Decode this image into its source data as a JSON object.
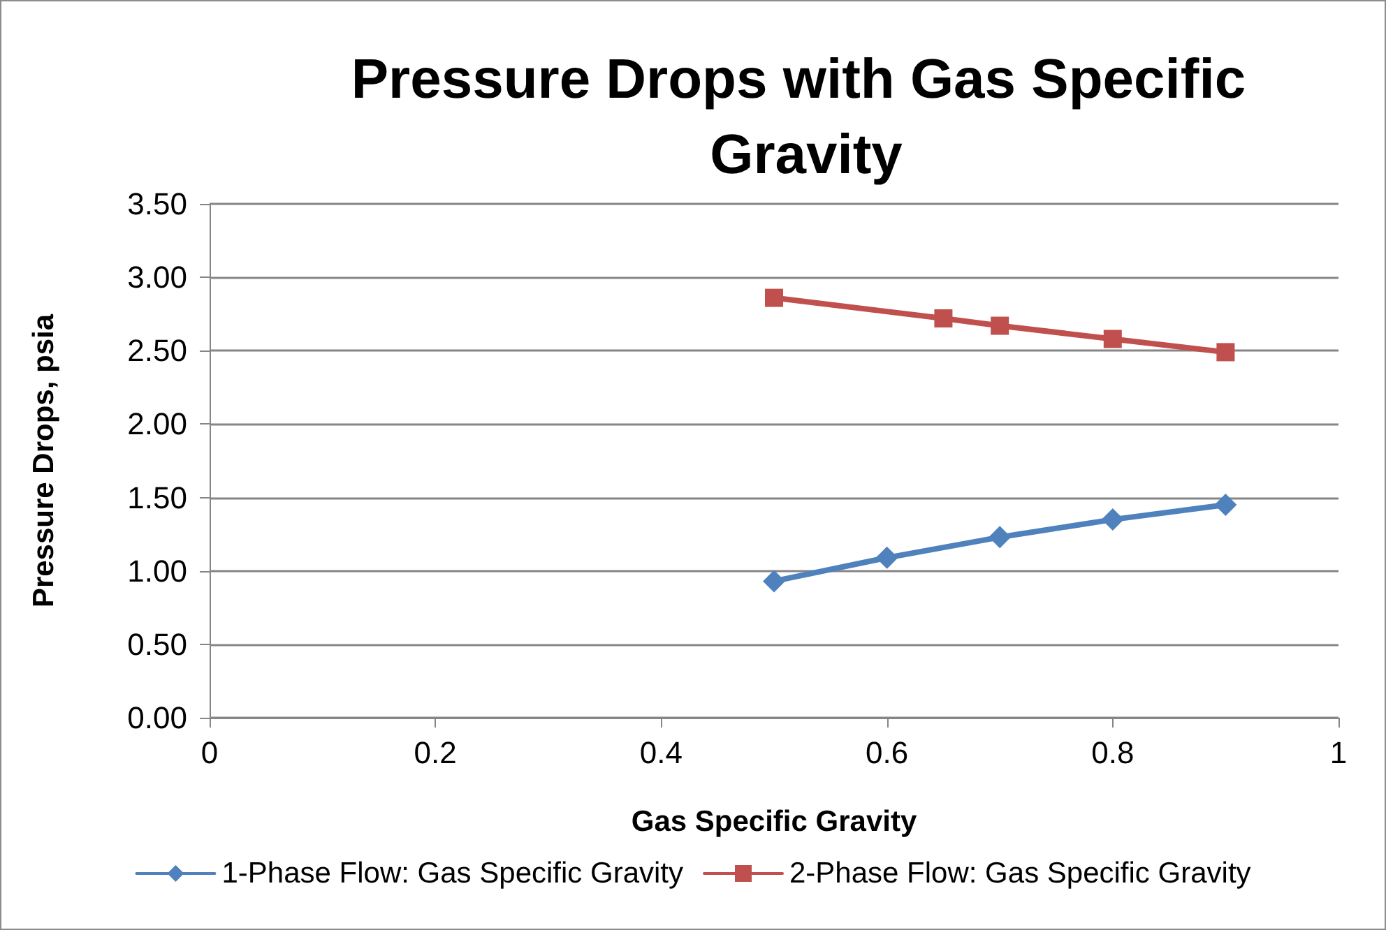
{
  "chart_data": {
    "type": "line",
    "title": "Pressure Drops with Gas Specific Gravity",
    "xlabel": "Gas Specific Gravity",
    "ylabel": "Pressure Drops, psia",
    "series": [
      {
        "name": "1-Phase Flow: Gas Specific Gravity",
        "color": "#4f81bd",
        "marker": "diamond",
        "x": [
          0.5,
          0.6,
          0.7,
          0.8,
          0.9
        ],
        "values": [
          0.93,
          1.09,
          1.23,
          1.35,
          1.45
        ]
      },
      {
        "name": "2-Phase Flow: Gas Specific Gravity",
        "color": "#c0504d",
        "marker": "square",
        "x": [
          0.5,
          0.65,
          0.7,
          0.8,
          0.9
        ],
        "values": [
          2.86,
          2.72,
          2.67,
          2.58,
          2.49
        ]
      }
    ],
    "xlim": [
      0,
      1
    ],
    "xticks": [
      0,
      0.2,
      0.4,
      0.6,
      0.8,
      1
    ],
    "ylim": [
      0,
      3.5
    ],
    "yticks": [
      {
        "value": 0,
        "label": "0.00"
      },
      {
        "value": 0.5,
        "label": "0.50"
      },
      {
        "value": 1,
        "label": "1.00"
      },
      {
        "value": 1.5,
        "label": "1.50"
      },
      {
        "value": 2,
        "label": "2.00"
      },
      {
        "value": 2.5,
        "label": "2.50"
      },
      {
        "value": 3,
        "label": "3.00"
      },
      {
        "value": 3.5,
        "label": "3.50"
      }
    ],
    "grid": "y",
    "legend": "bottom",
    "line_style": "solid"
  }
}
